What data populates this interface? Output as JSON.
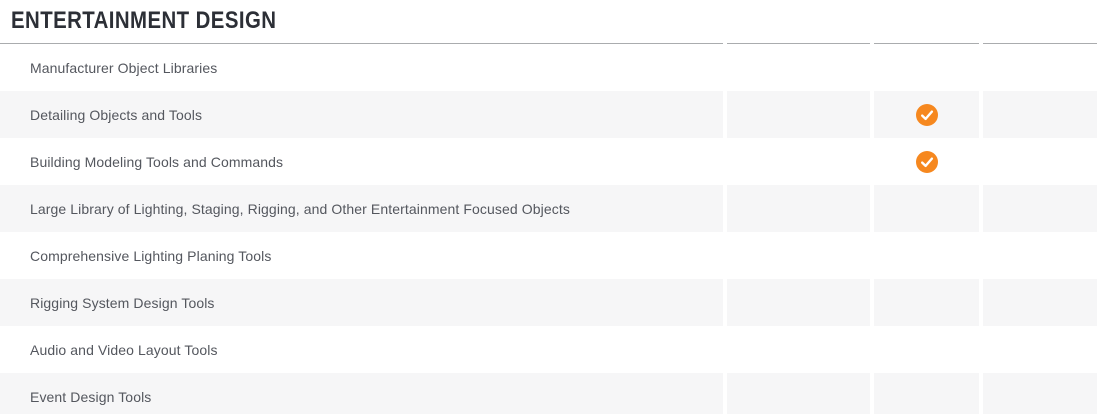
{
  "section": {
    "title": "ENTERTAINMENT DESIGN"
  },
  "table": {
    "product_columns": 3,
    "check_icon": "check-circle",
    "rows": [
      {
        "feature": "Manufacturer Object Libraries",
        "checks": [
          false,
          false,
          false
        ]
      },
      {
        "feature": "Detailing Objects and Tools",
        "checks": [
          false,
          true,
          false
        ]
      },
      {
        "feature": "Building Modeling Tools and Commands",
        "checks": [
          false,
          true,
          false
        ]
      },
      {
        "feature": "Large Library of Lighting, Staging, Rigging, and Other Entertainment Focused Objects",
        "checks": [
          false,
          false,
          false
        ]
      },
      {
        "feature": "Comprehensive Lighting Planing Tools",
        "checks": [
          false,
          false,
          false
        ]
      },
      {
        "feature": "Rigging System Design Tools",
        "checks": [
          false,
          false,
          false
        ]
      },
      {
        "feature": "Audio and Video Layout Tools",
        "checks": [
          false,
          false,
          false
        ]
      },
      {
        "feature": "Event Design Tools",
        "checks": [
          false,
          false,
          false
        ]
      }
    ]
  },
  "colors": {
    "accent_orange": "#f6881f",
    "row_stripe": "#f6f6f7",
    "rule_gray": "#aaacae",
    "title_text": "#2c2f36",
    "feature_text": "#54575e",
    "check_glyph": "#ffffff"
  }
}
